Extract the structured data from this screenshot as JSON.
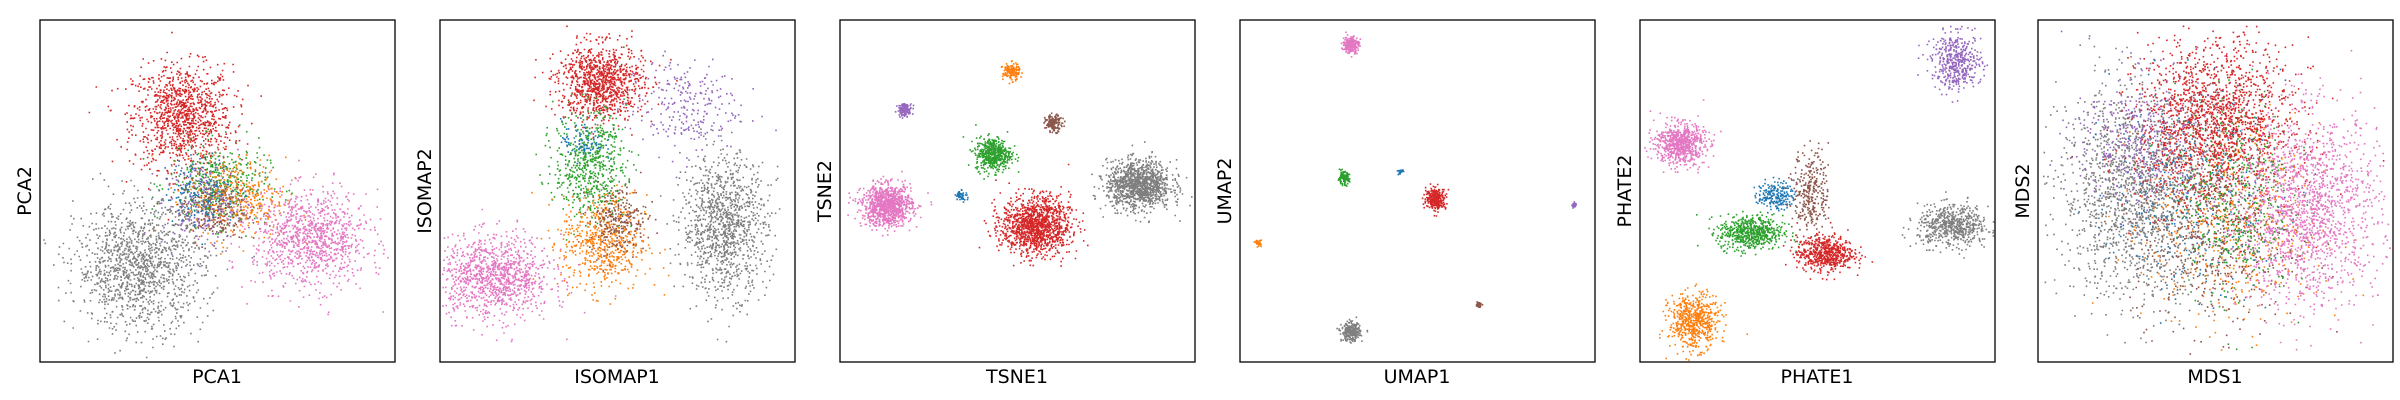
{
  "figure": {
    "panel_count": 6,
    "marker": "small dots",
    "ticks": "none",
    "grid": false,
    "legend": "none",
    "colors": {
      "blue": "#1f77b4",
      "orange": "#ff7f0e",
      "green": "#2ca02c",
      "red": "#d62728",
      "purple": "#9467bd",
      "brown": "#8c564b",
      "pink": "#e377c2",
      "gray": "#7f7f7f"
    }
  },
  "chart_data": [
    {
      "type": "scatter",
      "xlabel": "PCA1",
      "ylabel": "PCA2",
      "xlim": [
        0,
        1
      ],
      "ylim": [
        0,
        1
      ],
      "clusters": [
        {
          "color": "red",
          "x": 0.4,
          "y": 0.72,
          "sx": 0.07,
          "sy": 0.075,
          "n": 1100
        },
        {
          "color": "green",
          "x": 0.5,
          "y": 0.52,
          "sx": 0.07,
          "sy": 0.06,
          "n": 420
        },
        {
          "color": "orange",
          "x": 0.55,
          "y": 0.48,
          "sx": 0.07,
          "sy": 0.06,
          "n": 420
        },
        {
          "color": "purple",
          "x": 0.46,
          "y": 0.46,
          "sx": 0.06,
          "sy": 0.06,
          "n": 250
        },
        {
          "color": "brown",
          "x": 0.48,
          "y": 0.45,
          "sx": 0.05,
          "sy": 0.05,
          "n": 200
        },
        {
          "color": "blue",
          "x": 0.45,
          "y": 0.5,
          "sx": 0.05,
          "sy": 0.05,
          "n": 150
        },
        {
          "color": "pink",
          "x": 0.76,
          "y": 0.36,
          "sx": 0.08,
          "sy": 0.07,
          "n": 1000
        },
        {
          "color": "gray",
          "x": 0.28,
          "y": 0.28,
          "sx": 0.09,
          "sy": 0.09,
          "n": 1300
        }
      ]
    },
    {
      "type": "scatter",
      "xlabel": "ISOMAP1",
      "ylabel": "ISOMAP2",
      "xlim": [
        0,
        1
      ],
      "ylim": [
        0,
        1
      ],
      "clusters": [
        {
          "color": "red",
          "x": 0.45,
          "y": 0.82,
          "sx": 0.06,
          "sy": 0.055,
          "n": 1000
        },
        {
          "color": "green",
          "x": 0.42,
          "y": 0.58,
          "sx": 0.05,
          "sy": 0.08,
          "n": 600
        },
        {
          "color": "orange",
          "x": 0.46,
          "y": 0.35,
          "sx": 0.06,
          "sy": 0.07,
          "n": 600
        },
        {
          "color": "brown",
          "x": 0.5,
          "y": 0.42,
          "sx": 0.04,
          "sy": 0.05,
          "n": 250
        },
        {
          "color": "purple",
          "x": 0.68,
          "y": 0.75,
          "sx": 0.08,
          "sy": 0.07,
          "n": 260
        },
        {
          "color": "blue",
          "x": 0.4,
          "y": 0.65,
          "sx": 0.03,
          "sy": 0.03,
          "n": 80
        },
        {
          "color": "pink",
          "x": 0.15,
          "y": 0.25,
          "sx": 0.08,
          "sy": 0.06,
          "n": 1100
        },
        {
          "color": "gray",
          "x": 0.8,
          "y": 0.4,
          "sx": 0.06,
          "sy": 0.1,
          "n": 1100
        }
      ]
    },
    {
      "type": "scatter",
      "xlabel": "TSNE1",
      "ylabel": "TSNE2",
      "xlim": [
        0,
        1
      ],
      "ylim": [
        0,
        1
      ],
      "clusters": [
        {
          "color": "pink",
          "x": 0.13,
          "y": 0.46,
          "sx": 0.035,
          "sy": 0.03,
          "n": 1000
        },
        {
          "color": "red",
          "x": 0.55,
          "y": 0.4,
          "sx": 0.048,
          "sy": 0.042,
          "n": 1300
        },
        {
          "color": "green",
          "x": 0.43,
          "y": 0.61,
          "sx": 0.025,
          "sy": 0.024,
          "n": 500
        },
        {
          "color": "gray",
          "x": 0.84,
          "y": 0.52,
          "sx": 0.045,
          "sy": 0.035,
          "n": 1200
        },
        {
          "color": "orange",
          "x": 0.48,
          "y": 0.85,
          "sx": 0.012,
          "sy": 0.012,
          "n": 150
        },
        {
          "color": "brown",
          "x": 0.6,
          "y": 0.7,
          "sx": 0.012,
          "sy": 0.012,
          "n": 150
        },
        {
          "color": "purple",
          "x": 0.18,
          "y": 0.74,
          "sx": 0.01,
          "sy": 0.009,
          "n": 120
        },
        {
          "color": "blue",
          "x": 0.34,
          "y": 0.49,
          "sx": 0.008,
          "sy": 0.008,
          "n": 50
        }
      ]
    },
    {
      "type": "scatter",
      "xlabel": "UMAP1",
      "ylabel": "UMAP2",
      "xlim": [
        0,
        1
      ],
      "ylim": [
        0,
        1
      ],
      "clusters": [
        {
          "color": "pink",
          "x": 0.31,
          "y": 0.93,
          "sx": 0.011,
          "sy": 0.012,
          "n": 250
        },
        {
          "color": "green",
          "x": 0.29,
          "y": 0.54,
          "sx": 0.008,
          "sy": 0.009,
          "n": 120
        },
        {
          "color": "blue",
          "x": 0.45,
          "y": 0.56,
          "sx": 0.004,
          "sy": 0.004,
          "n": 30
        },
        {
          "color": "red",
          "x": 0.55,
          "y": 0.48,
          "sx": 0.014,
          "sy": 0.015,
          "n": 300
        },
        {
          "color": "purple",
          "x": 0.94,
          "y": 0.46,
          "sx": 0.003,
          "sy": 0.004,
          "n": 40
        },
        {
          "color": "orange",
          "x": 0.05,
          "y": 0.35,
          "sx": 0.004,
          "sy": 0.004,
          "n": 40
        },
        {
          "color": "brown",
          "x": 0.67,
          "y": 0.17,
          "sx": 0.004,
          "sy": 0.004,
          "n": 40
        },
        {
          "color": "gray",
          "x": 0.31,
          "y": 0.09,
          "sx": 0.013,
          "sy": 0.013,
          "n": 300
        }
      ]
    },
    {
      "type": "scatter",
      "xlabel": "PHATE1",
      "ylabel": "PHATE2",
      "xlim": [
        0,
        1
      ],
      "ylim": [
        0,
        1
      ],
      "clusters": [
        {
          "color": "purple",
          "x": 0.89,
          "y": 0.88,
          "sx": 0.035,
          "sy": 0.04,
          "n": 450
        },
        {
          "color": "pink",
          "x": 0.11,
          "y": 0.64,
          "sx": 0.035,
          "sy": 0.03,
          "n": 700
        },
        {
          "color": "blue",
          "x": 0.38,
          "y": 0.49,
          "sx": 0.025,
          "sy": 0.02,
          "n": 200
        },
        {
          "color": "brown",
          "x": 0.48,
          "y": 0.5,
          "sx": 0.025,
          "sy": 0.06,
          "n": 300
        },
        {
          "color": "green",
          "x": 0.31,
          "y": 0.38,
          "sx": 0.045,
          "sy": 0.025,
          "n": 600
        },
        {
          "color": "red",
          "x": 0.52,
          "y": 0.32,
          "sx": 0.04,
          "sy": 0.025,
          "n": 600
        },
        {
          "color": "gray",
          "x": 0.88,
          "y": 0.4,
          "sx": 0.05,
          "sy": 0.03,
          "n": 600
        },
        {
          "color": "orange",
          "x": 0.15,
          "y": 0.12,
          "sx": 0.035,
          "sy": 0.04,
          "n": 600
        }
      ]
    },
    {
      "type": "scatter",
      "xlabel": "MDS1",
      "ylabel": "MDS2",
      "xlim": [
        0,
        1
      ],
      "ylim": [
        0,
        1
      ],
      "clusters": [
        {
          "color": "gray",
          "x": 0.28,
          "y": 0.5,
          "sx": 0.11,
          "sy": 0.15,
          "n": 1700
        },
        {
          "color": "purple",
          "x": 0.3,
          "y": 0.65,
          "sx": 0.1,
          "sy": 0.1,
          "n": 500
        },
        {
          "color": "blue",
          "x": 0.45,
          "y": 0.5,
          "sx": 0.12,
          "sy": 0.15,
          "n": 400
        },
        {
          "color": "orange",
          "x": 0.55,
          "y": 0.4,
          "sx": 0.12,
          "sy": 0.15,
          "n": 500
        },
        {
          "color": "brown",
          "x": 0.5,
          "y": 0.35,
          "sx": 0.12,
          "sy": 0.12,
          "n": 500
        },
        {
          "color": "green",
          "x": 0.55,
          "y": 0.5,
          "sx": 0.08,
          "sy": 0.15,
          "n": 500
        },
        {
          "color": "red",
          "x": 0.5,
          "y": 0.7,
          "sx": 0.11,
          "sy": 0.12,
          "n": 1700
        },
        {
          "color": "pink",
          "x": 0.76,
          "y": 0.45,
          "sx": 0.1,
          "sy": 0.14,
          "n": 1600
        }
      ]
    }
  ]
}
